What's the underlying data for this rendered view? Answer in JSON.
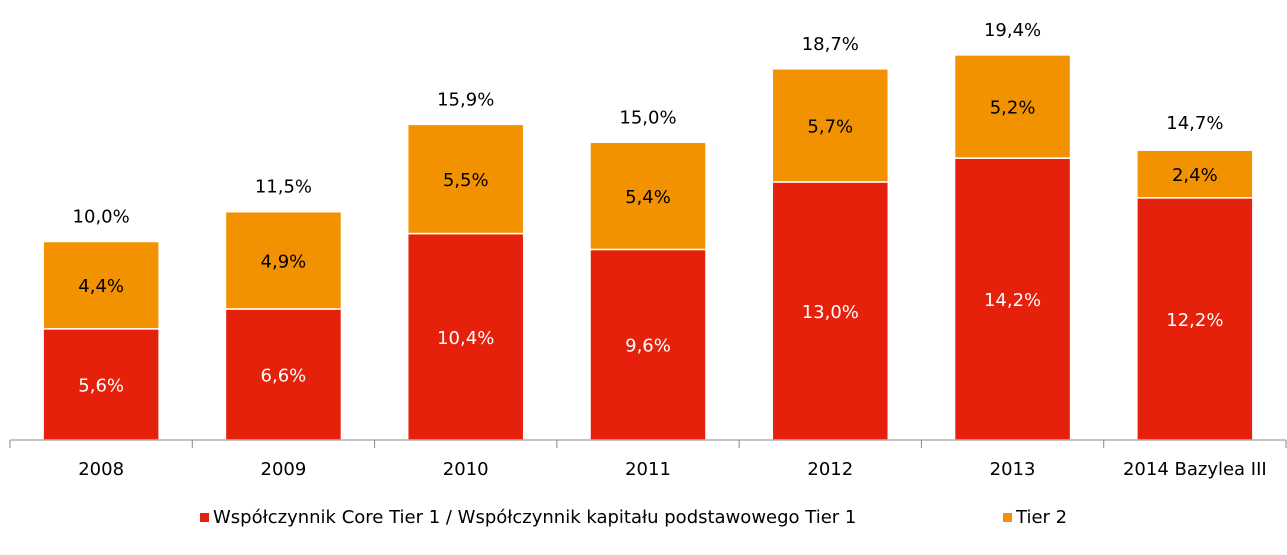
{
  "chart_data": {
    "type": "stacked_bar",
    "categories": [
      "2008",
      "2009",
      "2010",
      "2011",
      "2012",
      "2013",
      "2014 Bazylea III"
    ],
    "series": [
      {
        "name": "Współczynnik Core Tier 1 / Współczynnik kapitału podstawowego Tier 1",
        "color": "#e5200b",
        "values": [
          5.6,
          6.6,
          10.4,
          9.6,
          13.0,
          14.2,
          12.2
        ],
        "value_labels": [
          "5,6%",
          "6,6%",
          "10,4%",
          "9,6%",
          "13,0%",
          "14,2%",
          "12,2%"
        ]
      },
      {
        "name": "Tier 2",
        "color": "#f39200",
        "values": [
          4.4,
          4.9,
          5.5,
          5.4,
          5.7,
          5.2,
          2.4
        ],
        "value_labels": [
          "4,4%",
          "4,9%",
          "5,5%",
          "5,4%",
          "5,7%",
          "5,2%",
          "2,4%"
        ]
      }
    ],
    "totals": [
      10.0,
      11.5,
      15.9,
      15.0,
      18.7,
      19.4,
      14.7
    ],
    "total_labels": [
      "10,0%",
      "11,5%",
      "15,9%",
      "15,0%",
      "18,7%",
      "19,4%",
      "14,7%"
    ]
  }
}
